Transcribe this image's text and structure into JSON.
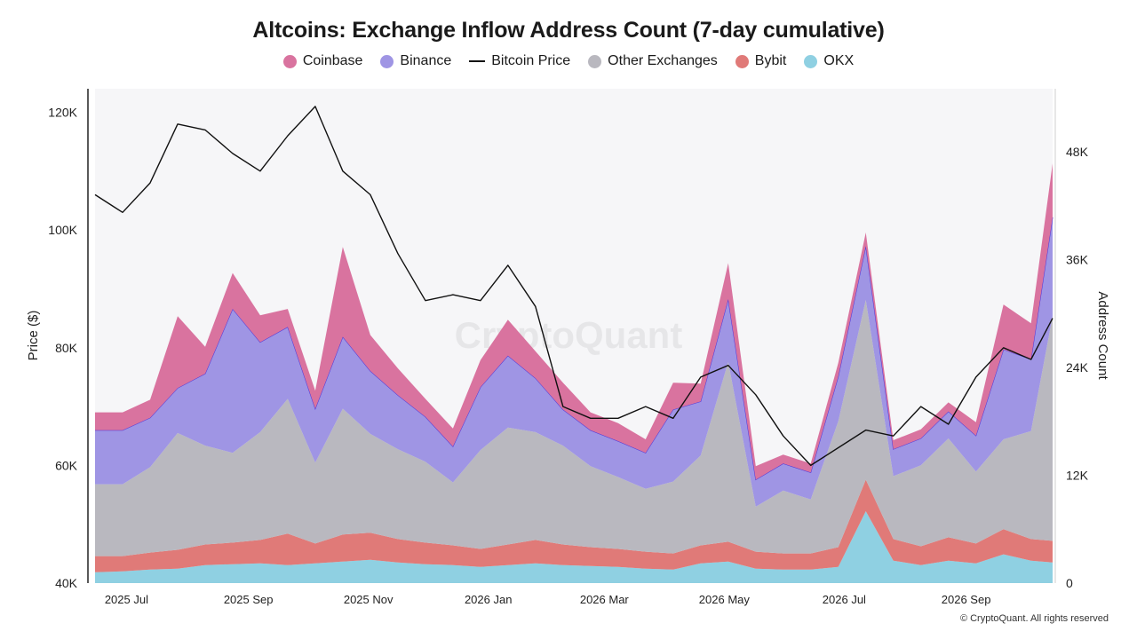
{
  "colors": {
    "coinbase": "#d9739f",
    "binance": "#9f95e4",
    "binance_line": "#4a35dc",
    "bitcoin_price": "#111111",
    "other_exchanges": "#b9b8bf",
    "bybit": "#e07a78",
    "okx": "#8fd0e2"
  },
  "watermark": "CryptoQuant",
  "copyright": "© CryptoQuant. All rights reserved",
  "chart_data": {
    "type": "area",
    "title": "Altcoins: Exchange Inflow Address Count (7-day cumulative)",
    "legend": [
      {
        "key": "coinbase",
        "label": "Coinbase",
        "marker": "dot"
      },
      {
        "key": "binance",
        "label": "Binance",
        "marker": "dot"
      },
      {
        "key": "bitcoin_price",
        "label": "Bitcoin Price",
        "marker": "line"
      },
      {
        "key": "other_exchanges",
        "label": "Other Exchanges",
        "marker": "dot"
      },
      {
        "key": "bybit",
        "label": "Bybit",
        "marker": "dot"
      },
      {
        "key": "okx",
        "label": "OKX",
        "marker": "dot"
      }
    ],
    "legend_position": "top-center",
    "stacked": true,
    "x_range": [
      "2025-06-15",
      "2026-10-15"
    ],
    "x_ticks": [
      {
        "date": "2025-07-01",
        "label": "2025 Jul"
      },
      {
        "date": "2025-09-01",
        "label": "2025 Sep"
      },
      {
        "date": "2025-11-01",
        "label": "2025 Nov"
      },
      {
        "date": "2026-01-01",
        "label": "2026 Jan"
      },
      {
        "date": "2026-03-01",
        "label": "2026 Mar"
      },
      {
        "date": "2026-05-01",
        "label": "2026 May"
      },
      {
        "date": "2026-07-01",
        "label": "2026 Jul"
      },
      {
        "date": "2026-09-01",
        "label": "2026 Sep"
      }
    ],
    "y_left": {
      "label": "Price ($)",
      "range": [
        40000,
        124000
      ],
      "ticks": [
        {
          "v": 40000,
          "label": "40K"
        },
        {
          "v": 60000,
          "label": "60K"
        },
        {
          "v": 80000,
          "label": "80K"
        },
        {
          "v": 100000,
          "label": "100K"
        },
        {
          "v": 120000,
          "label": "120K"
        }
      ]
    },
    "y_right": {
      "label": "Address Count",
      "range": [
        0,
        55000
      ],
      "ticks": [
        {
          "v": 0,
          "label": "0"
        },
        {
          "v": 12000,
          "label": "12K"
        },
        {
          "v": 24000,
          "label": "24K"
        },
        {
          "v": 36000,
          "label": "36K"
        },
        {
          "v": 48000,
          "label": "48K"
        }
      ]
    },
    "grid": false,
    "dates": [
      "2025-06-15",
      "2025-06-29",
      "2025-07-13",
      "2025-07-27",
      "2025-08-10",
      "2025-08-24",
      "2025-09-07",
      "2025-09-21",
      "2025-10-05",
      "2025-10-19",
      "2025-11-02",
      "2025-11-16",
      "2025-11-30",
      "2025-12-14",
      "2025-12-28",
      "2026-01-11",
      "2026-01-25",
      "2026-02-08",
      "2026-02-22",
      "2026-03-08",
      "2026-03-22",
      "2026-04-05",
      "2026-04-19",
      "2026-05-03",
      "2026-05-17",
      "2026-05-31",
      "2026-06-14",
      "2026-06-28",
      "2026-07-12",
      "2026-07-26",
      "2026-08-09",
      "2026-08-23",
      "2026-09-06",
      "2026-09-20",
      "2026-10-04",
      "2026-10-15"
    ],
    "series": [
      {
        "name": "OKX",
        "key": "okx",
        "axis": "right",
        "values": [
          1200,
          1300,
          1500,
          1600,
          2000,
          2100,
          2200,
          2000,
          2200,
          2400,
          2600,
          2300,
          2100,
          2000,
          1800,
          2000,
          2200,
          2000,
          1900,
          1800,
          1600,
          1500,
          2200,
          2400,
          1600,
          1500,
          1500,
          1800,
          8000,
          2500,
          2000,
          2500,
          2200,
          3200,
          2500,
          2300
        ]
      },
      {
        "name": "Bybit",
        "key": "bybit",
        "axis": "right",
        "values": [
          1800,
          1700,
          1900,
          2100,
          2300,
          2400,
          2600,
          3500,
          2200,
          3000,
          3000,
          2600,
          2400,
          2200,
          2000,
          2300,
          2600,
          2300,
          2100,
          2000,
          1900,
          1800,
          2000,
          2200,
          1900,
          1800,
          1800,
          2200,
          3500,
          2400,
          2100,
          2600,
          2200,
          2800,
          2400,
          2400
        ]
      },
      {
        "name": "Other Exchanges",
        "key": "other_exchanges",
        "axis": "right",
        "values": [
          8000,
          8000,
          9500,
          13000,
          11000,
          10000,
          12000,
          15000,
          9000,
          14000,
          11000,
          10000,
          9000,
          7000,
          11000,
          13000,
          12000,
          11000,
          9000,
          8000,
          7000,
          8000,
          10000,
          20000,
          5000,
          7000,
          6000,
          14000,
          20000,
          7000,
          9000,
          11000,
          8000,
          10000,
          12000,
          25000
        ]
      },
      {
        "name": "Binance",
        "key": "binance",
        "axis": "right",
        "values": [
          6000,
          6000,
          5500,
          5000,
          8000,
          16000,
          10000,
          8000,
          6000,
          8000,
          7000,
          6000,
          5000,
          4000,
          7000,
          8000,
          6000,
          4000,
          4000,
          4000,
          4000,
          8000,
          6000,
          7000,
          3000,
          3000,
          3000,
          5000,
          6000,
          3000,
          3000,
          3000,
          4000,
          10000,
          8000,
          11000
        ]
      },
      {
        "name": "Coinbase",
        "key": "coinbase",
        "axis": "right",
        "values": [
          2000,
          2000,
          2000,
          8000,
          3000,
          4000,
          3000,
          2000,
          2000,
          10000,
          4000,
          3000,
          2000,
          2000,
          3000,
          4000,
          3000,
          3000,
          2000,
          2000,
          1500,
          3000,
          2000,
          4000,
          1500,
          1000,
          1000,
          1500,
          1500,
          1000,
          1000,
          1000,
          1500,
          5000,
          4000,
          6000
        ]
      },
      {
        "name": "Bitcoin Price",
        "key": "bitcoin_price",
        "axis": "left",
        "type": "line",
        "values": [
          106000,
          103000,
          108000,
          118000,
          117000,
          113000,
          110000,
          116000,
          121000,
          110000,
          106000,
          96000,
          88000,
          89000,
          88000,
          94000,
          87000,
          70000,
          68000,
          68000,
          70000,
          68000,
          75000,
          77000,
          72000,
          65000,
          60000,
          63000,
          66000,
          65000,
          70000,
          67000,
          75000,
          80000,
          78000,
          85000
        ]
      }
    ]
  }
}
